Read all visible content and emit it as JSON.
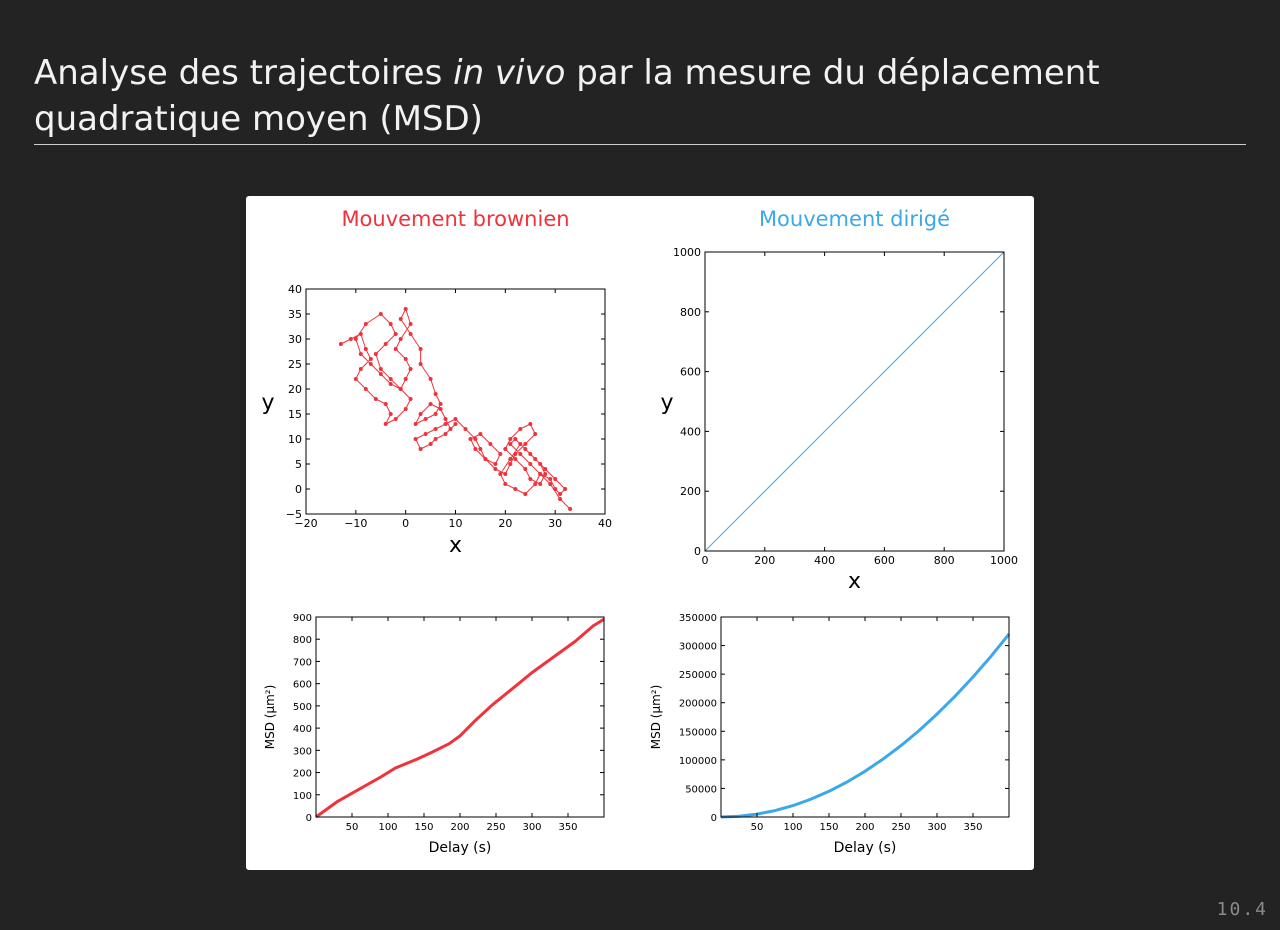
{
  "slide": {
    "title_part1": "Analyse des trajectoires ",
    "title_italic": "in vivo",
    "title_part2": " par la mesure du déplacement quadratique moyen (MSD)",
    "slide_number": "10.4"
  },
  "colors": {
    "background": "#232323",
    "brownian": "#f0323c",
    "directed": "#3ba8ea",
    "title_text": "#f2f2f2"
  },
  "chart_data": [
    {
      "type": "line",
      "id": "brownian-trajectory",
      "title": "Mouvement brownien",
      "xlabel": "x",
      "ylabel": "y",
      "xlim": [
        -20,
        40
      ],
      "ylim": [
        -5,
        40
      ],
      "xticks": [
        -20,
        -10,
        0,
        10,
        20,
        30,
        40
      ],
      "yticks": [
        -5,
        0,
        5,
        10,
        15,
        20,
        25,
        30,
        35,
        40
      ],
      "markers": true,
      "series": [
        {
          "x": [
            -13,
            -11,
            -9,
            -8,
            -7,
            -9,
            -10,
            -8,
            -6,
            -4,
            -3,
            -4,
            -2,
            0,
            1,
            -1,
            -3,
            -5,
            -6,
            -4,
            -2,
            -3,
            -5,
            -8,
            -10,
            -9,
            -7,
            -5,
            -3,
            -1,
            0,
            1,
            0,
            -2,
            -1,
            1,
            0,
            -1,
            1,
            3,
            3,
            5,
            6,
            7,
            6,
            4,
            2,
            3,
            5,
            7,
            8,
            9,
            10,
            8,
            6,
            5,
            3,
            2,
            4,
            6,
            8,
            10,
            12,
            14,
            15,
            16,
            18,
            19,
            17,
            15,
            13,
            14,
            16,
            18,
            20,
            21,
            22,
            24,
            26,
            25,
            23,
            21,
            20,
            22,
            24,
            25,
            27,
            28,
            27,
            25,
            23,
            21,
            19,
            20,
            22,
            24,
            26,
            27,
            29,
            30,
            31,
            32,
            30,
            28,
            26,
            24,
            22,
            21,
            23,
            25,
            27,
            29,
            31,
            33
          ],
          "y": [
            29,
            30,
            31,
            28,
            26,
            24,
            22,
            20,
            18,
            17,
            15,
            13,
            14,
            16,
            18,
            20,
            22,
            24,
            27,
            29,
            31,
            33,
            35,
            33,
            30,
            27,
            25,
            23,
            21,
            20,
            22,
            24,
            26,
            28,
            30,
            33,
            36,
            34,
            31,
            28,
            25,
            22,
            19,
            17,
            15,
            14,
            13,
            15,
            17,
            16,
            14,
            12,
            13,
            11,
            10,
            9,
            8,
            10,
            11,
            12,
            13,
            14,
            12,
            10,
            8,
            6,
            5,
            7,
            9,
            11,
            10,
            8,
            6,
            4,
            3,
            5,
            7,
            9,
            11,
            13,
            12,
            10,
            8,
            6,
            4,
            2,
            1,
            3,
            5,
            7,
            9,
            6,
            3,
            1,
            0,
            -1,
            1,
            3,
            2,
            0,
            -1,
            0,
            2,
            4,
            6,
            8,
            10,
            9,
            7,
            5,
            3,
            1,
            -2,
            -4
          ]
        }
      ]
    },
    {
      "type": "line",
      "id": "directed-trajectory",
      "title": "Mouvement dirigé",
      "xlabel": "x",
      "ylabel": "y",
      "xlim": [
        0,
        1000
      ],
      "ylim": [
        0,
        1000
      ],
      "xticks": [
        0,
        200,
        400,
        600,
        800,
        1000
      ],
      "yticks": [
        0,
        200,
        400,
        600,
        800,
        1000
      ],
      "series": [
        {
          "x": [
            0,
            1000
          ],
          "y": [
            0,
            1000
          ]
        }
      ]
    },
    {
      "type": "line",
      "id": "brownian-msd",
      "xlabel": "Delay (s)",
      "ylabel": "MSD (µm²)",
      "xlim": [
        0,
        400
      ],
      "ylim": [
        0,
        900
      ],
      "xticks": [
        50,
        100,
        150,
        200,
        250,
        300,
        350
      ],
      "yticks": [
        0,
        100,
        200,
        300,
        400,
        500,
        600,
        700,
        800,
        900
      ],
      "series": [
        {
          "x": [
            0,
            30,
            60,
            90,
            110,
            140,
            160,
            185,
            200,
            220,
            245,
            270,
            300,
            330,
            360,
            385,
            400
          ],
          "y": [
            0,
            70,
            125,
            180,
            220,
            260,
            290,
            330,
            365,
            430,
            505,
            570,
            650,
            720,
            790,
            860,
            890
          ]
        }
      ]
    },
    {
      "type": "line",
      "id": "directed-msd",
      "xlabel": "Delay (s)",
      "ylabel": "MSD (µm²)",
      "xlim": [
        0,
        400
      ],
      "ylim": [
        0,
        350000
      ],
      "xticks": [
        50,
        100,
        150,
        200,
        250,
        300,
        350
      ],
      "yticks": [
        0,
        50000,
        100000,
        150000,
        200000,
        250000,
        300000,
        350000
      ],
      "series": [
        {
          "x": [
            0,
            25,
            50,
            75,
            100,
            125,
            150,
            175,
            200,
            225,
            250,
            275,
            300,
            325,
            350,
            375,
            400
          ],
          "y": [
            0,
            1250,
            5000,
            11250,
            20000,
            31250,
            45000,
            61250,
            80000,
            101250,
            125000,
            151250,
            180000,
            211250,
            245000,
            281250,
            320000
          ]
        }
      ]
    }
  ]
}
